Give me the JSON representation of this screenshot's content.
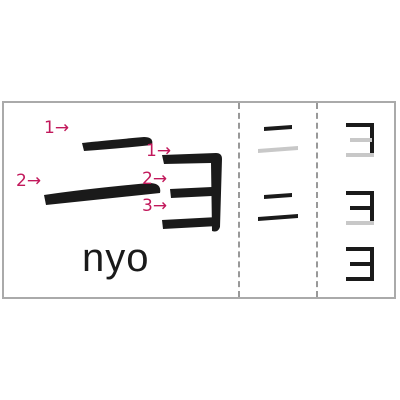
{
  "romaji": "nyo",
  "main_chars": [
    "ニ",
    "ョ"
  ],
  "stroke_labels": {
    "ni_1": "1→",
    "ni_2": "2→",
    "yo_1": "1→",
    "yo_2": "2→",
    "yo_3": "3→"
  },
  "practice": {
    "ni_steps": [
      "ニ stroke 1",
      "ニ complete"
    ],
    "yo_steps": [
      "ョ stroke 1",
      "ョ stroke 2",
      "ョ complete"
    ]
  },
  "colors": {
    "ink": "#1a1a1a",
    "arrow": "#c2185b",
    "ghost": "#c8c8c8",
    "border": "#aaaaaa"
  }
}
